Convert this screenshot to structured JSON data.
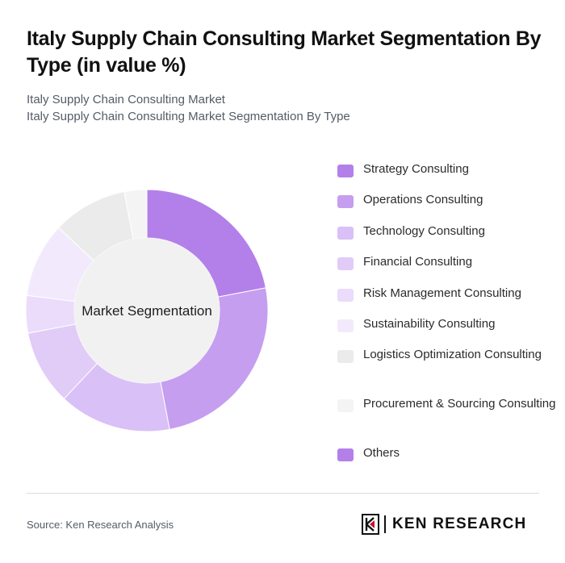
{
  "title": "Italy Supply Chain Consulting Market Segmentation By Type (in value %)",
  "subtitle_line1": "Italy Supply Chain Consulting Market",
  "subtitle_line2": "Italy Supply Chain Consulting Market Segmentation By Type",
  "source": "Source: Ken Research Analysis",
  "brand": "KEN RESEARCH",
  "chart_data": {
    "type": "pie",
    "center_label": "Market Segmentation",
    "legend_position": "right",
    "series": [
      {
        "name": "Strategy Consulting",
        "value": 22,
        "color": "#b380ea"
      },
      {
        "name": "Operations Consulting",
        "value": 25,
        "color": "#c59ef0"
      },
      {
        "name": "Technology Consulting",
        "value": 15,
        "color": "#d9c0f6"
      },
      {
        "name": "Financial Consulting",
        "value": 10,
        "color": "#e0ccf7"
      },
      {
        "name": "Risk Management Consulting",
        "value": 5,
        "color": "#eadcfa"
      },
      {
        "name": "Sustainability Consulting",
        "value": 10,
        "color": "#f2eafc"
      },
      {
        "name": "Logistics Optimization Consulting",
        "value": 10,
        "color": "#ebebeb"
      },
      {
        "name": "Procurement & Sourcing Consulting",
        "value": 3,
        "color": "#f4f4f4"
      },
      {
        "name": "Others",
        "value": 0,
        "color": "#b380ea"
      }
    ]
  }
}
